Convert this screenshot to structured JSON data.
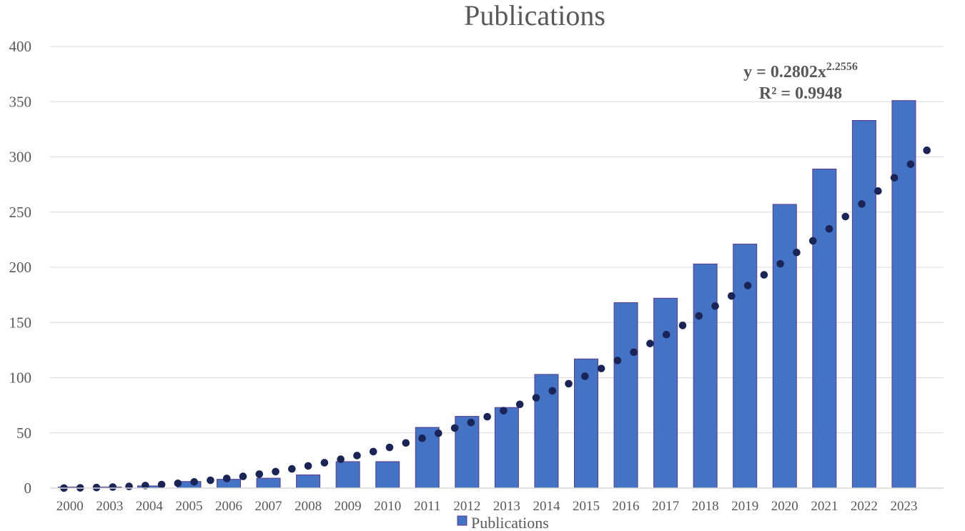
{
  "chart_data": {
    "type": "bar",
    "title": "Publications",
    "xlabel": "",
    "ylabel": "",
    "ylim": [
      0,
      400
    ],
    "yticks": [
      "0",
      "50",
      "100",
      "150",
      "200",
      "250",
      "300",
      "350",
      "400"
    ],
    "grid": true,
    "legend_position": "bottom",
    "categories": [
      "2000",
      "2003",
      "2004",
      "2005",
      "2006",
      "2007",
      "2008",
      "2009",
      "2010",
      "2011",
      "2012",
      "2013",
      "2014",
      "2015",
      "2016",
      "2017",
      "2018",
      "2019",
      "2020",
      "2021",
      "2022",
      "2023"
    ],
    "series": [
      {
        "name": "Publications",
        "values": [
          1,
          1,
          2,
          6,
          8,
          9,
          12,
          24,
          24,
          55,
          65,
          73,
          103,
          117,
          168,
          172,
          203,
          221,
          257,
          289,
          333,
          351
        ]
      }
    ],
    "trendline": {
      "type": "power",
      "coefficient": 0.2802,
      "exponent": 2.2556,
      "label_line1": "y = 0.2802x",
      "label_exponent": "2.2556",
      "label_line2": "R² = 0.9948"
    },
    "colors": {
      "bar": "#4472C4",
      "bar_edge": "#5B3B8C",
      "trend": "#1A2456",
      "grid": "#D9D9D9",
      "text": "#595959"
    }
  }
}
